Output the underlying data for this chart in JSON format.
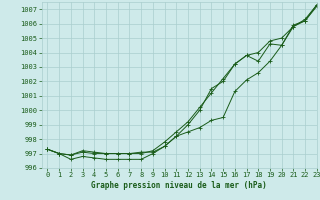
{
  "title": "Graphe pression niveau de la mer (hPa)",
  "background_color": "#ceeaea",
  "grid_color": "#aacece",
  "line_color": "#1a5c1a",
  "xlim": [
    -0.5,
    23
  ],
  "ylim": [
    996,
    1007.5
  ],
  "xticks": [
    0,
    1,
    2,
    3,
    4,
    5,
    6,
    7,
    8,
    9,
    10,
    11,
    12,
    13,
    14,
    15,
    16,
    17,
    18,
    19,
    20,
    21,
    22,
    23
  ],
  "yticks": [
    996,
    997,
    998,
    999,
    1000,
    1001,
    1002,
    1003,
    1004,
    1005,
    1006,
    1007
  ],
  "series1": [
    997.3,
    997.0,
    996.6,
    996.8,
    996.7,
    996.6,
    996.6,
    996.6,
    996.6,
    997.0,
    997.5,
    998.2,
    998.5,
    998.8,
    999.3,
    999.5,
    1001.3,
    1002.1,
    1002.6,
    1003.4,
    1004.5,
    1005.8,
    1006.3,
    1007.3
  ],
  "series2": [
    997.3,
    997.0,
    996.9,
    997.1,
    997.0,
    997.0,
    997.0,
    997.0,
    997.1,
    997.1,
    997.5,
    998.2,
    999.0,
    1000.0,
    1001.5,
    1002.0,
    1003.2,
    1003.8,
    1003.4,
    1004.6,
    1004.5,
    1005.9,
    1006.2,
    1007.3
  ],
  "series3": [
    997.3,
    997.0,
    996.9,
    997.2,
    997.1,
    997.0,
    997.0,
    997.0,
    997.0,
    997.2,
    997.8,
    998.5,
    999.2,
    1000.2,
    1001.2,
    1002.2,
    1003.2,
    1003.8,
    1004.0,
    1004.8,
    1005.0,
    1005.8,
    1006.2,
    1007.2
  ],
  "tick_fontsize": 5,
  "label_fontsize": 5.5,
  "line_width": 0.7,
  "marker_size": 3
}
